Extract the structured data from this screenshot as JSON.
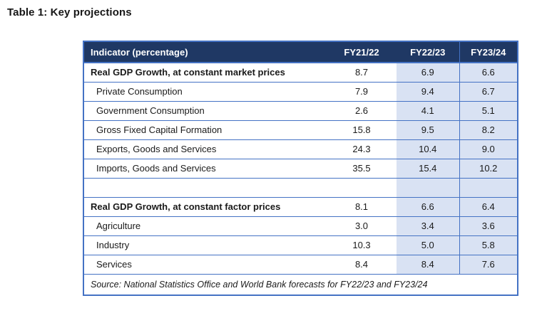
{
  "title": "Table 1: Key projections",
  "colors": {
    "header_bg": "#1F3864",
    "header_text": "#FFFFFF",
    "shade": "#D9E2F3",
    "border": "#4472C4",
    "text": "#1A1A1A",
    "page_bg": "#FFFFFF"
  },
  "table": {
    "columns": [
      "Indicator (percentage)",
      "FY21/22",
      "FY22/23",
      "FY23/24"
    ],
    "rows": [
      {
        "label": "Real GDP Growth, at constant market prices",
        "style": "bold",
        "values": [
          "8.7",
          "6.9",
          "6.6"
        ]
      },
      {
        "label": "Private Consumption",
        "style": "sub",
        "values": [
          "7.9",
          "9.4",
          "6.7"
        ]
      },
      {
        "label": "Government Consumption",
        "style": "sub",
        "values": [
          "2.6",
          "4.1",
          "5.1"
        ]
      },
      {
        "label": "Gross Fixed Capital Formation",
        "style": "sub",
        "values": [
          "15.8",
          "9.5",
          "8.2"
        ]
      },
      {
        "label": "Exports, Goods and Services",
        "style": "sub",
        "values": [
          "24.3",
          "10.4",
          "9.0"
        ]
      },
      {
        "label": "Imports, Goods and Services",
        "style": "sub",
        "values": [
          "35.5",
          "15.4",
          "10.2"
        ]
      },
      {
        "label": "",
        "style": "empty",
        "values": [
          "",
          "",
          ""
        ]
      },
      {
        "label": "Real GDP Growth, at constant factor prices",
        "style": "bold",
        "values": [
          "8.1",
          "6.6",
          "6.4"
        ]
      },
      {
        "label": "Agriculture",
        "style": "sub",
        "values": [
          "3.0",
          "3.4",
          "3.6"
        ]
      },
      {
        "label": "Industry",
        "style": "sub",
        "values": [
          "10.3",
          "5.0",
          "5.8"
        ]
      },
      {
        "label": "Services",
        "style": "sub",
        "values": [
          "8.4",
          "8.4",
          "7.6"
        ]
      }
    ],
    "source": "Source: National Statistics Office and World Bank forecasts for FY22/23 and FY23/24"
  }
}
